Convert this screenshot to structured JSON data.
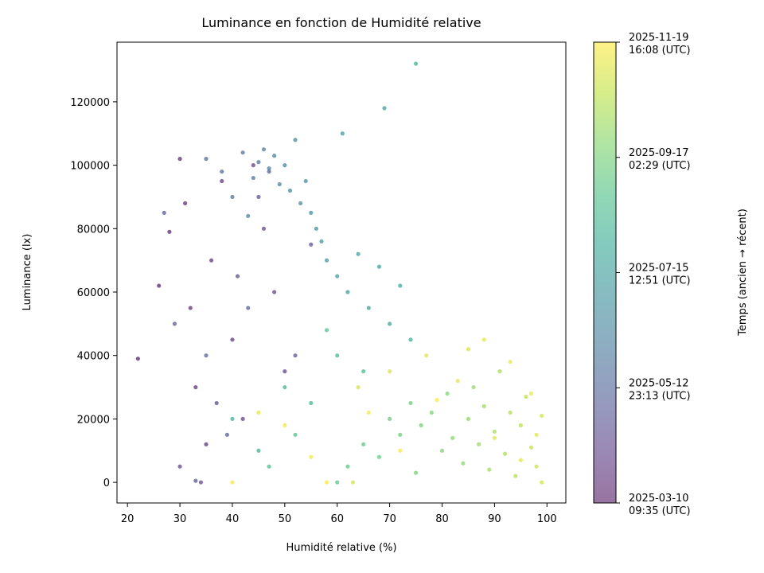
{
  "chart_data": {
    "type": "scatter",
    "title": "Luminance en fonction de Humidité relative",
    "x_label": "Humidité relative (%)",
    "y_label": "Luminance (lx)",
    "xlim": [
      18,
      103.6
    ],
    "ylim": [
      -6500,
      138800
    ],
    "xticks": [
      20,
      30,
      40,
      50,
      60,
      70,
      80,
      90,
      100
    ],
    "yticks": [
      0,
      20000,
      40000,
      60000,
      80000,
      100000,
      120000
    ],
    "x": [
      22,
      26,
      28,
      30,
      31,
      32,
      33,
      35,
      36,
      38,
      40,
      42,
      44,
      46,
      48,
      50,
      30,
      34,
      37,
      41,
      45,
      52,
      55,
      33,
      29,
      27,
      39,
      43,
      47,
      35,
      35,
      38,
      40,
      42,
      44,
      45,
      46,
      47,
      48,
      49,
      50,
      51,
      52,
      53,
      54,
      55,
      56,
      57,
      58,
      60,
      62,
      64,
      66,
      68,
      70,
      72,
      74,
      40,
      45,
      50,
      55,
      60,
      65,
      47,
      52,
      58,
      43,
      61,
      69,
      75,
      60,
      62,
      65,
      68,
      70,
      72,
      74,
      75,
      76,
      78,
      80,
      81,
      82,
      84,
      85,
      86,
      87,
      88,
      89,
      90,
      91,
      92,
      93,
      94,
      95,
      96,
      97,
      98,
      99,
      99,
      64,
      70,
      77,
      83,
      88,
      93,
      97,
      66,
      72,
      79,
      85,
      90,
      95,
      98,
      45,
      50,
      55,
      40,
      58,
      63
    ],
    "values": [
      39000,
      62000,
      79000,
      102000,
      88000,
      55000,
      30000,
      12000,
      70000,
      95000,
      45000,
      20000,
      100000,
      80000,
      60000,
      35000,
      5000,
      0,
      25000,
      65000,
      90000,
      40000,
      75000,
      500,
      50000,
      85000,
      15000,
      55000,
      98000,
      40000,
      102000,
      98000,
      90000,
      104000,
      96000,
      101000,
      105000,
      99000,
      103000,
      94000,
      100000,
      92000,
      108000,
      88000,
      95000,
      85000,
      80000,
      76000,
      70000,
      65000,
      60000,
      72000,
      55000,
      68000,
      50000,
      62000,
      45000,
      20000,
      10000,
      30000,
      25000,
      40000,
      35000,
      5000,
      15000,
      48000,
      84000,
      110000,
      118000,
      132000,
      0,
      5000,
      12000,
      8000,
      20000,
      15000,
      25000,
      3000,
      18000,
      22000,
      10000,
      28000,
      14000,
      6000,
      20000,
      30000,
      12000,
      24000,
      4000,
      16000,
      35000,
      9000,
      22000,
      2000,
      18000,
      27000,
      11000,
      5000,
      0,
      21000,
      30000,
      35000,
      40000,
      32000,
      45000,
      38000,
      28000,
      22000,
      10000,
      26000,
      42000,
      14000,
      7000,
      15000,
      22000,
      18000,
      8000,
      0,
      0,
      0
    ],
    "time": [
      "2025-03-11",
      "2025-03-13",
      "2025-03-15",
      "2025-03-17",
      "2025-03-19",
      "2025-03-21",
      "2025-03-23",
      "2025-03-25",
      "2025-03-27",
      "2025-03-29",
      "2025-03-31",
      "2025-04-02",
      "2025-04-04",
      "2025-04-06",
      "2025-04-08",
      "2025-04-10",
      "2025-04-12",
      "2025-04-14",
      "2025-04-16",
      "2025-04-18",
      "2025-04-20",
      "2025-04-22",
      "2025-04-24",
      "2025-04-26",
      "2025-04-28",
      "2025-04-30",
      "2025-05-02",
      "2025-05-04",
      "2025-05-06",
      "2025-05-08",
      "2025-05-15",
      "2025-05-18",
      "2025-05-21",
      "2025-05-24",
      "2025-05-27",
      "2025-05-30",
      "2025-06-02",
      "2025-06-05",
      "2025-06-08",
      "2025-06-11",
      "2025-06-14",
      "2025-06-17",
      "2025-06-20",
      "2025-06-23",
      "2025-06-26",
      "2025-06-29",
      "2025-07-02",
      "2025-07-05",
      "2025-07-08",
      "2025-07-11",
      "2025-07-14",
      "2025-07-17",
      "2025-07-20",
      "2025-07-23",
      "2025-07-26",
      "2025-07-29",
      "2025-08-01",
      "2025-08-04",
      "2025-08-07",
      "2025-08-10",
      "2025-08-13",
      "2025-08-16",
      "2025-08-19",
      "2025-08-22",
      "2025-08-25",
      "2025-08-28",
      "2025-06-15",
      "2025-07-10",
      "2025-07-20",
      "2025-08-05",
      "2025-09-02",
      "2025-09-04",
      "2025-09-06",
      "2025-09-08",
      "2025-09-10",
      "2025-09-12",
      "2025-09-14",
      "2025-09-16",
      "2025-09-18",
      "2025-09-20",
      "2025-09-22",
      "2025-09-24",
      "2025-09-26",
      "2025-09-28",
      "2025-09-30",
      "2025-10-02",
      "2025-10-04",
      "2025-10-06",
      "2025-10-08",
      "2025-10-10",
      "2025-10-12",
      "2025-10-14",
      "2025-10-16",
      "2025-10-18",
      "2025-10-20",
      "2025-10-22",
      "2025-10-24",
      "2025-10-26",
      "2025-10-28",
      "2025-10-30",
      "2025-11-01",
      "2025-11-03",
      "2025-11-05",
      "2025-11-07",
      "2025-11-09",
      "2025-11-11",
      "2025-11-13",
      "2025-11-15",
      "2025-11-17",
      "2025-11-19",
      "2025-11-02",
      "2025-11-04",
      "2025-11-06",
      "2025-11-08",
      "2025-11-10",
      "2025-11-12",
      "2025-11-14",
      "2025-11-16",
      "2025-11-18",
      "2025-10-31"
    ],
    "colorbar": {
      "label": "Temps (ancien → récent)",
      "cmap": [
        "#440154",
        "#482878",
        "#3e4989",
        "#31688e",
        "#26828e",
        "#1f9e89",
        "#35b779",
        "#6ece58",
        "#b5de2b",
        "#fde725"
      ],
      "alpha": 0.55,
      "lim": [
        "2025-03-10T09:35Z",
        "2025-11-19T16:08Z"
      ],
      "ticks": [
        {
          "value": "2025-03-10T09:35Z",
          "label": "2025-03-10\n09:35 (UTC)"
        },
        {
          "value": "2025-05-12T23:13Z",
          "label": "2025-05-12\n23:13 (UTC)"
        },
        {
          "value": "2025-07-15T12:51Z",
          "label": "2025-07-15\n12:51 (UTC)"
        },
        {
          "value": "2025-09-17T02:29Z",
          "label": "2025-09-17\n02:29 (UTC)"
        },
        {
          "value": "2025-11-19T16:08Z",
          "label": "2025-11-19\n16:08 (UTC)"
        }
      ]
    }
  }
}
